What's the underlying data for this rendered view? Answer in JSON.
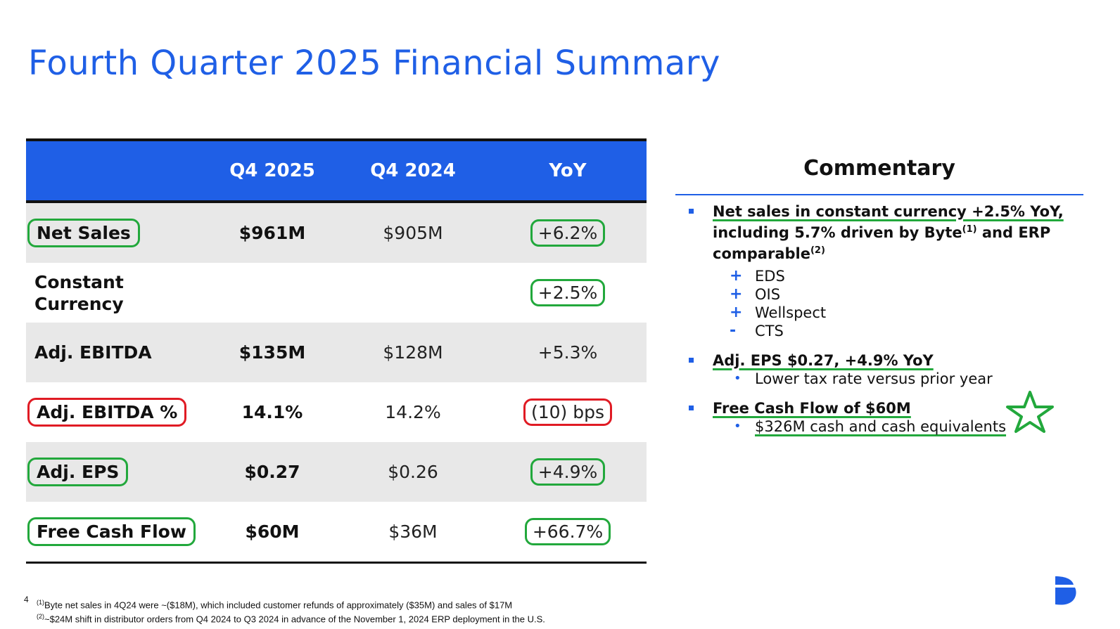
{
  "title": "Fourth Quarter 2025 Financial Summary",
  "table": {
    "headers": [
      "",
      "Q4 2025",
      "Q4 2024",
      "YoY"
    ],
    "rows": [
      {
        "label": "Net Sales",
        "q4_2025": "$961M",
        "q4_2024": "$905M",
        "yoy": "+6.2%",
        "label_circle": "green",
        "yoy_circle": "green"
      },
      {
        "label": "Constant Currency",
        "label_lines": [
          "Constant",
          "Currency"
        ],
        "q4_2025": "",
        "q4_2024": "",
        "yoy": "+2.5%",
        "label_circle": "",
        "yoy_circle": "green"
      },
      {
        "label": "Adj. EBITDA",
        "q4_2025": "$135M",
        "q4_2024": "$128M",
        "yoy": "+5.3%",
        "label_circle": "",
        "yoy_circle": ""
      },
      {
        "label": "Adj. EBITDA %",
        "q4_2025": "14.1%",
        "q4_2024": "14.2%",
        "yoy": "(10) bps",
        "label_circle": "red",
        "yoy_circle": "red"
      },
      {
        "label": "Adj. EPS",
        "q4_2025": "$0.27",
        "q4_2024": "$0.26",
        "yoy": "+4.9%",
        "label_circle": "green",
        "yoy_circle": "green"
      },
      {
        "label": "Free Cash Flow",
        "q4_2025": "$60M",
        "q4_2024": "$36M",
        "yoy": "+66.7%",
        "label_circle": "green",
        "yoy_circle": "green"
      }
    ]
  },
  "commentary": {
    "heading": "Commentary",
    "b1": {
      "line1": "Net sales in constant currency +2.5% YoY,",
      "line2": "including 5.7% driven by Byte",
      "sup1": "(1)",
      "line2b": " and ERP",
      "line3": "comparable",
      "sup2": "(2)",
      "subs": [
        {
          "mark": "+",
          "text": "EDS"
        },
        {
          "mark": "+",
          "text": "OIS"
        },
        {
          "mark": "+",
          "text": "Wellspect"
        },
        {
          "mark": "-",
          "text": "CTS"
        }
      ]
    },
    "b2": {
      "head": "Adj. EPS $0.27, +4.9% YoY",
      "sub": "Lower tax rate versus prior year"
    },
    "b3": {
      "head": "Free Cash Flow of $60M",
      "sub": "$326M cash and cash equivalents"
    }
  },
  "footer": {
    "page": "4",
    "note1_sup": "(1)",
    "note1": "Byte net sales in 4Q24 were ~($18M), which included customer refunds of approximately ($35M) and sales of $17M",
    "note2_sup": "(2)",
    "note2": "~$24M shift in distributor orders from Q4 2024 to Q3 2024 in advance of the November 1, 2024 ERP deployment in the U.S."
  },
  "colors": {
    "accent": "#1f5fe6",
    "good": "#22a83c",
    "bad": "#e01b24",
    "shade": "#e8e8e8"
  }
}
